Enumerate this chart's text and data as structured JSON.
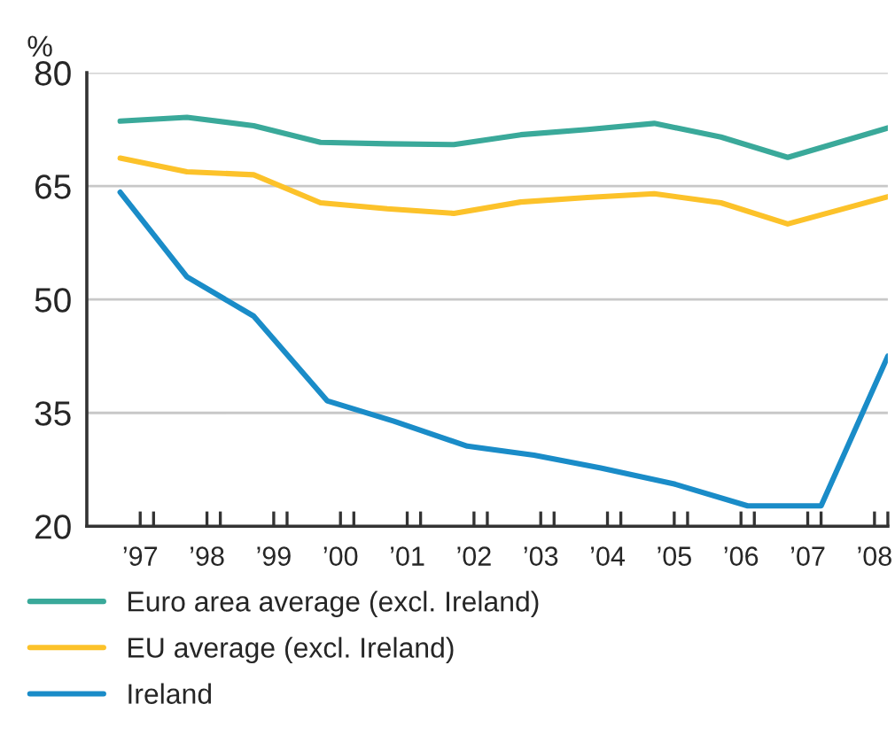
{
  "chart_data": {
    "type": "line",
    "ylabel": "%",
    "ylim": [
      20,
      80
    ],
    "yticks": [
      20,
      35,
      50,
      65,
      80
    ],
    "xlim": [
      1996.2,
      2008.2
    ],
    "xticks": [
      {
        "value": 1997.2,
        "label": null
      },
      {
        "value": 1998.2,
        "label": null
      },
      {
        "value": 1999.2,
        "label": null
      },
      {
        "value": 2000.2,
        "label": null
      },
      {
        "value": 2001.2,
        "label": null
      },
      {
        "value": 2002.2,
        "label": null
      },
      {
        "value": 2003.2,
        "label": null
      },
      {
        "value": 2004.2,
        "label": null
      },
      {
        "value": 2005.2,
        "label": null
      },
      {
        "value": 2006.2,
        "label": null
      },
      {
        "value": 2007.2,
        "label": null
      },
      {
        "value": 2008.2,
        "label": null
      },
      {
        "value": 1997,
        "label": "’97"
      },
      {
        "value": 1998,
        "label": "’98"
      },
      {
        "value": 1999,
        "label": "’99"
      },
      {
        "value": 2000,
        "label": "’00"
      },
      {
        "value": 2001,
        "label": "’01"
      },
      {
        "value": 2002,
        "label": "’02"
      },
      {
        "value": 2003,
        "label": "’03"
      },
      {
        "value": 2004,
        "label": "’04"
      },
      {
        "value": 2005,
        "label": "’05"
      },
      {
        "value": 2006,
        "label": "’06"
      },
      {
        "value": 2007,
        "label": "’07"
      },
      {
        "value": 2008,
        "label": "’08"
      }
    ],
    "grid": "y",
    "legend": "bottom",
    "line_style": "solid",
    "series": [
      {
        "name": "Euro area average (excl. Ireland)",
        "color": "#3aa99a",
        "x": [
          1996.7,
          1997.7,
          1998.7,
          1999.7,
          2000.7,
          2001.7,
          2002.7,
          2003.7,
          2004.7,
          2005.7,
          2006.7,
          2008.2
        ],
        "values": [
          73.6,
          74.1,
          73.0,
          70.8,
          70.6,
          70.5,
          71.8,
          72.5,
          73.3,
          71.5,
          68.8,
          72.7
        ]
      },
      {
        "name": "EU average (excl. Ireland)",
        "color": "#fcc22a",
        "x": [
          1996.7,
          1997.7,
          1998.7,
          1999.7,
          2000.7,
          2001.7,
          2002.7,
          2003.7,
          2004.7,
          2005.7,
          2006.7,
          2008.2
        ],
        "values": [
          68.7,
          66.9,
          66.5,
          62.8,
          62.0,
          61.4,
          62.9,
          63.5,
          64.0,
          62.8,
          60.0,
          63.6
        ]
      },
      {
        "name": "Ireland",
        "color": "#1a8cc8",
        "x": [
          1996.7,
          1997.7,
          1998.7,
          1999.8,
          2000.8,
          2001.9,
          2002.9,
          2003.9,
          2005.0,
          2006.1,
          2007.2,
          2008.2
        ],
        "values": [
          64.2,
          53.0,
          47.8,
          36.6,
          33.9,
          30.6,
          29.4,
          27.7,
          25.6,
          22.7,
          22.7,
          42.5
        ]
      }
    ]
  }
}
